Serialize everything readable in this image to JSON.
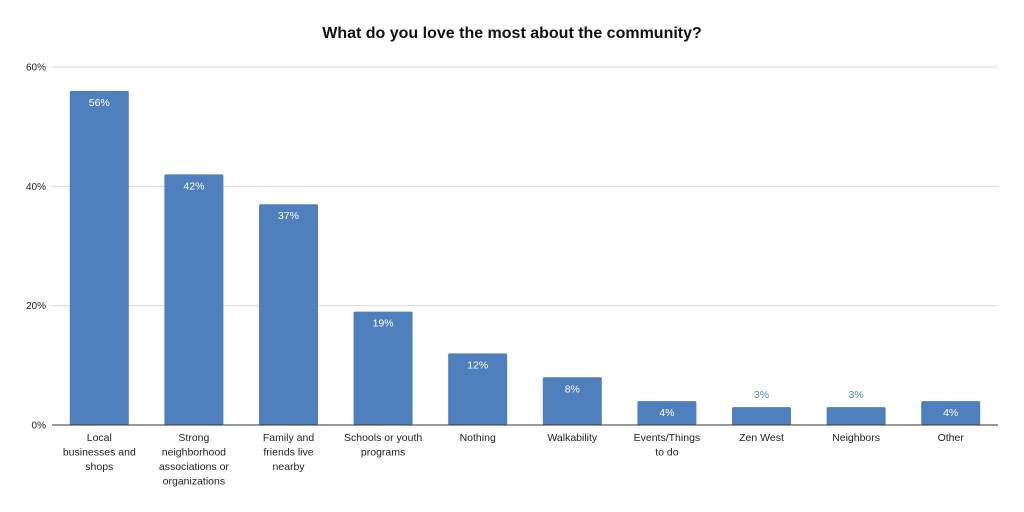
{
  "chart_data": {
    "type": "bar",
    "title": "What do you love the most about the community?",
    "xlabel": "",
    "ylabel": "",
    "categories": [
      "Local businesses and shops",
      "Strong neighborhood associations or organizations",
      "Family and friends live nearby",
      "Schools or youth programs",
      "Nothing",
      "Walkability",
      "Events/Things to do",
      "Zen West",
      "Neighbors",
      "Other"
    ],
    "category_lines": [
      [
        "Local",
        "businesses and",
        "shops"
      ],
      [
        "Strong",
        "neighborhood",
        "associations or",
        "organizations"
      ],
      [
        "Family and",
        "friends live",
        "nearby"
      ],
      [
        "Schools or youth",
        "programs"
      ],
      [
        "Nothing"
      ],
      [
        "Walkability"
      ],
      [
        "Events/Things",
        "to do"
      ],
      [
        "Zen West"
      ],
      [
        "Neighbors"
      ],
      [
        "Other"
      ]
    ],
    "values": [
      56,
      42,
      37,
      19,
      12,
      8,
      4,
      3,
      3,
      4
    ],
    "data_labels": [
      "56%",
      "42%",
      "37%",
      "19%",
      "12%",
      "8%",
      "4%",
      "3%",
      "3%",
      "4%"
    ],
    "ylim": [
      0,
      60
    ],
    "yticks": [
      0,
      20,
      40,
      60
    ],
    "ytick_labels": [
      "0%",
      "20%",
      "40%",
      "60%"
    ],
    "grid": true,
    "legend": "none",
    "colors": {
      "bar": "#4f7fbd",
      "label_inside": "#ffffff",
      "label_outside": "#4f7fbd",
      "grid": "#d9d9d9",
      "axis": "#333333"
    }
  }
}
